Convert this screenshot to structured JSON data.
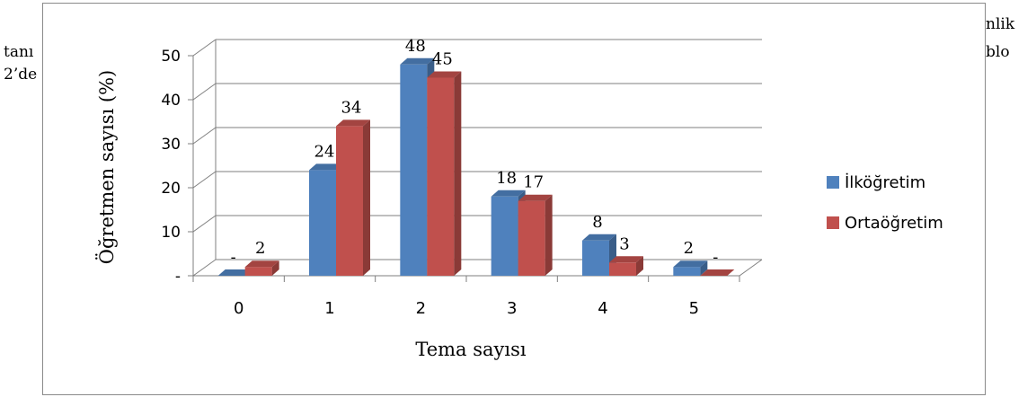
{
  "background_text": {
    "line1_right": "nlik",
    "line2_left": "tanı",
    "line2_right": "blo",
    "line3_left": "2’de"
  },
  "chart_data": {
    "type": "bar",
    "categories": [
      "0",
      "1",
      "2",
      "3",
      "4",
      "5"
    ],
    "series": [
      {
        "name": "İlköğretim",
        "color": "#4f81bd",
        "values": [
          0,
          24,
          48,
          18,
          8,
          2
        ],
        "labels": [
          "-",
          "24",
          "48",
          "18",
          "8",
          "2"
        ]
      },
      {
        "name": "Ortaöğretim",
        "color": "#c0504d",
        "values": [
          2,
          34,
          45,
          17,
          3,
          0
        ],
        "labels": [
          "2",
          "34",
          "45",
          "17",
          "3",
          "-"
        ]
      }
    ],
    "xlabel": "Tema sayısı",
    "ylabel": "Öğretmen sayısı (%)",
    "ylim": [
      0,
      50
    ],
    "yticks": [
      "-",
      "10",
      "20",
      "30",
      "40",
      "50"
    ],
    "grid": true,
    "three_d": true,
    "legend": "right"
  }
}
